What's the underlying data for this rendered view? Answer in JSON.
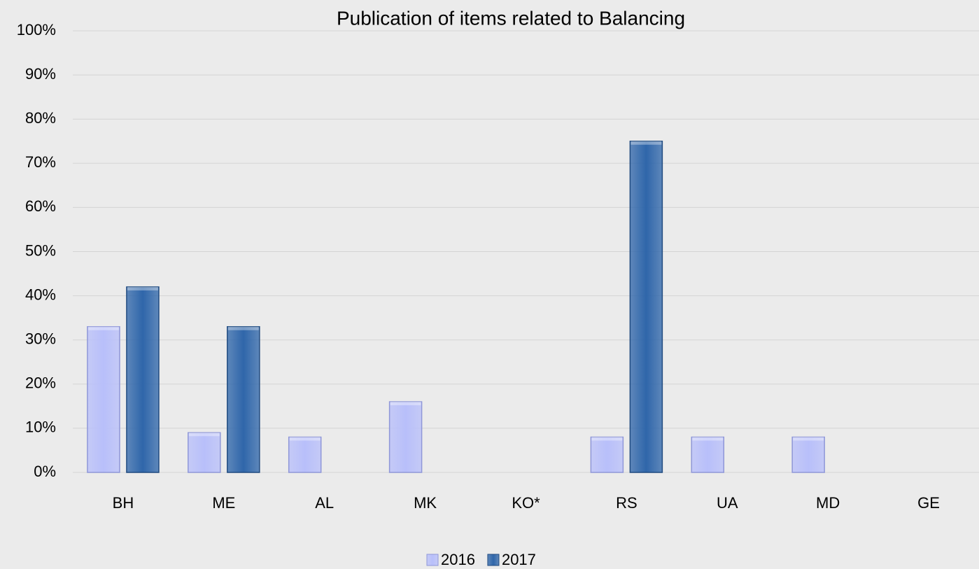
{
  "chart_data": {
    "type": "bar",
    "title": "Publication of items related to Balancing",
    "categories": [
      "BH",
      "ME",
      "AL",
      "MK",
      "KO*",
      "RS",
      "UA",
      "MD",
      "GE"
    ],
    "series": [
      {
        "name": "2016",
        "color": "#b8bffa",
        "values": [
          33,
          9,
          8,
          16,
          0,
          8,
          8,
          8,
          0
        ]
      },
      {
        "name": "2017",
        "color": "#2f66aa",
        "values": [
          42,
          33,
          0,
          0,
          0,
          75,
          0,
          0,
          0
        ]
      }
    ],
    "ylim": [
      0,
      100
    ],
    "yticks": [
      {
        "value": 0,
        "label": "0%"
      },
      {
        "value": 10,
        "label": "10%"
      },
      {
        "value": 20,
        "label": "20%"
      },
      {
        "value": 30,
        "label": "30%"
      },
      {
        "value": 40,
        "label": "40%"
      },
      {
        "value": 50,
        "label": "50%"
      },
      {
        "value": 60,
        "label": "60%"
      },
      {
        "value": 70,
        "label": "70%"
      },
      {
        "value": 80,
        "label": "80%"
      },
      {
        "value": 90,
        "label": "90%"
      },
      {
        "value": 100,
        "label": "100%"
      }
    ],
    "grid": true,
    "legend": "bottom"
  }
}
